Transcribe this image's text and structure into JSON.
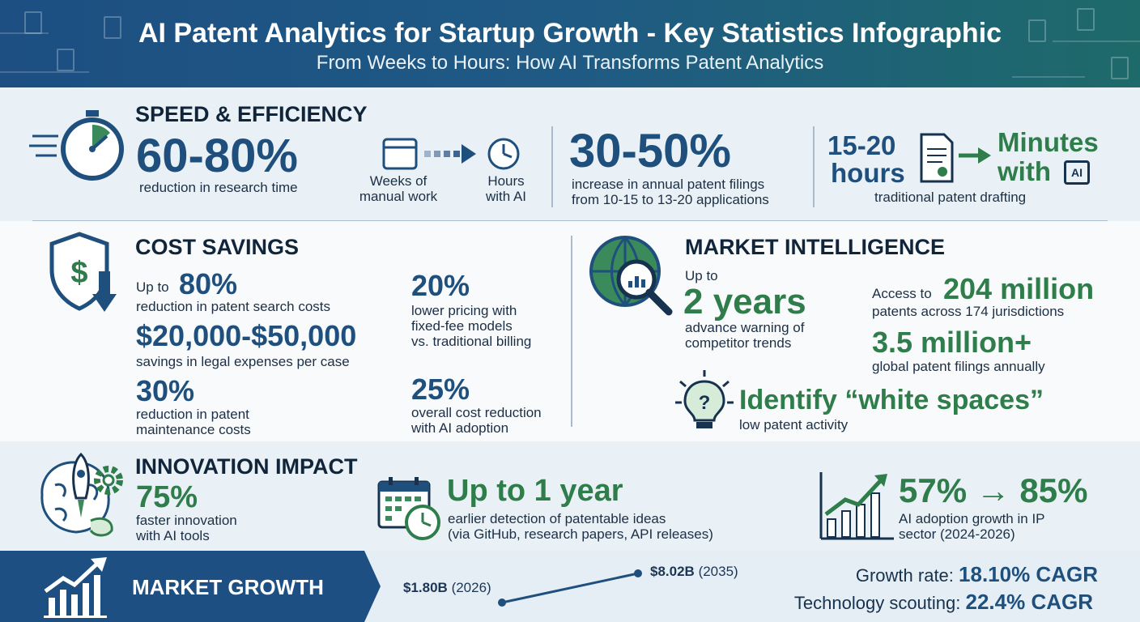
{
  "header": {
    "title": "AI Patent Analytics for Startup Growth - Key Statistics Infographic",
    "subtitle": "From Weeks to Hours: How AI Transforms Patent Analytics"
  },
  "speed": {
    "title": "SPEED & EFFICIENCY",
    "research": {
      "value": "60-80%",
      "label": "reduction in research time"
    },
    "weeks_label": "Weeks of\nmanual work",
    "hours_label": "Hours\nwith AI",
    "filings": {
      "value": "30-50%",
      "line1": "increase in annual patent filings",
      "line2": "from 10-15 to 13-20 applications"
    },
    "drafting": {
      "from_line1": "15-20",
      "from_line2": "hours",
      "to_line1": "Minutes",
      "to_line2": "with",
      "ai_chip": "AI",
      "label": "traditional patent drafting"
    }
  },
  "cost": {
    "title": "COST SAVINGS",
    "search": {
      "prefix": "Up to",
      "value": "80%",
      "label": "reduction in patent search costs"
    },
    "legal": {
      "value": "$20,000-$50,000",
      "label": "savings in legal expenses per case"
    },
    "maintenance": {
      "value": "30%",
      "line1": "reduction in patent",
      "line2": "maintenance costs"
    },
    "pricing": {
      "value": "20%",
      "line1": "lower pricing with",
      "line2": "fixed-fee models",
      "line3": "vs. traditional billing"
    },
    "overall": {
      "value": "25%",
      "line1": "overall cost reduction",
      "line2": "with AI adoption"
    }
  },
  "market": {
    "title": "MARKET INTELLIGENCE",
    "warning": {
      "prefix": "Up to",
      "value": "2 years",
      "line1": "advance warning of",
      "line2": "competitor trends"
    },
    "access": {
      "prefix": "Access to",
      "value": "204 million",
      "label": "patents across 174 jurisdictions"
    },
    "filings": {
      "value": "3.5 million+",
      "label": "global patent filings annually"
    },
    "whitespace": {
      "value": "Identify “white spaces”",
      "label": "low patent activity"
    }
  },
  "innovation": {
    "title": "INNOVATION IMPACT",
    "faster": {
      "value": "75%",
      "line1": "faster innovation",
      "line2": "with AI tools"
    },
    "detection": {
      "value": "Up to 1 year",
      "line1": "earlier detection of patentable ideas",
      "line2": "(via GitHub, research papers, API releases)"
    },
    "adoption": {
      "value": "57% → 85%",
      "line1": "AI adoption growth in IP",
      "line2": "sector (2024-2026)"
    }
  },
  "growth": {
    "title": "MARKET GROWTH",
    "start": {
      "value": "$1.80B",
      "year": "(2026)"
    },
    "end": {
      "value": "$8.02B",
      "year": "(2035)"
    },
    "rate": {
      "label": "Growth rate:",
      "value": "18.10% CAGR"
    },
    "scouting": {
      "label": "Technology scouting:",
      "value": "22.4% CAGR"
    }
  },
  "chart_data": {
    "type": "line",
    "x": [
      "2026",
      "2035"
    ],
    "series": [
      {
        "values": [
          1.8,
          8.02
        ]
      }
    ]
  },
  "colors": {
    "navy": "#1f4f7d",
    "green": "#2e7d4a",
    "header_start": "#1d4f82",
    "header_end": "#1e6a6a"
  }
}
